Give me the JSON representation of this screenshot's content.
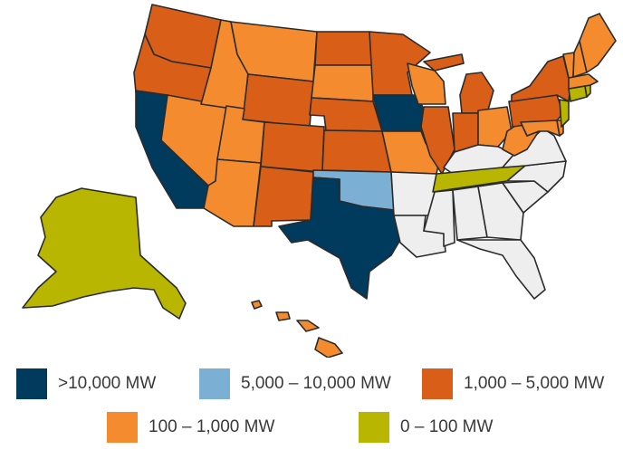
{
  "colors": {
    "over_10000": "#003a5c",
    "5000_10000": "#7bafd4",
    "1000_5000": "#d95f18",
    "100_1000": "#f48c2f",
    "0_100": "#b8b600",
    "none": "#eeeeee"
  },
  "legend": [
    {
      "label": ">10,000 MW",
      "key": "over_10000"
    },
    {
      "label": "5,000 – 10,000 MW",
      "key": "5000_10000"
    },
    {
      "label": "1,000 – 5,000 MW",
      "key": "1000_5000"
    },
    {
      "label": "100 – 1,000 MW",
      "key": "100_1000"
    },
    {
      "label": "0 – 100 MW",
      "key": "0_100"
    }
  ],
  "states": {
    "WA": "1000_5000",
    "OR": "1000_5000",
    "CA": "over_10000",
    "NV": "100_1000",
    "ID": "100_1000",
    "MT": "100_1000",
    "WY": "1000_5000",
    "UT": "100_1000",
    "AZ": "100_1000",
    "CO": "1000_5000",
    "NM": "1000_5000",
    "ND": "1000_5000",
    "SD": "100_1000",
    "NE": "1000_5000",
    "KS": "1000_5000",
    "OK": "5000_10000",
    "TX": "over_10000",
    "MN": "1000_5000",
    "IA": "over_10000",
    "MO": "100_1000",
    "AR": "none",
    "LA": "none",
    "WI": "100_1000",
    "IL": "1000_5000",
    "MI": "1000_5000",
    "IN": "1000_5000",
    "OH": "100_1000",
    "KY": "none",
    "TN": "0_100",
    "MS": "none",
    "AL": "none",
    "GA": "none",
    "FL": "none",
    "SC": "none",
    "NC": "none",
    "VA": "none",
    "WV": "100_1000",
    "MD": "100_1000",
    "DE": "100_1000",
    "NJ": "0_100",
    "PA": "1000_5000",
    "NY": "1000_5000",
    "CT": "0_100",
    "RI": "0_100",
    "MA": "100_1000",
    "VT": "100_1000",
    "NH": "100_1000",
    "ME": "100_1000",
    "AK": "0_100",
    "HI": "100_1000"
  }
}
